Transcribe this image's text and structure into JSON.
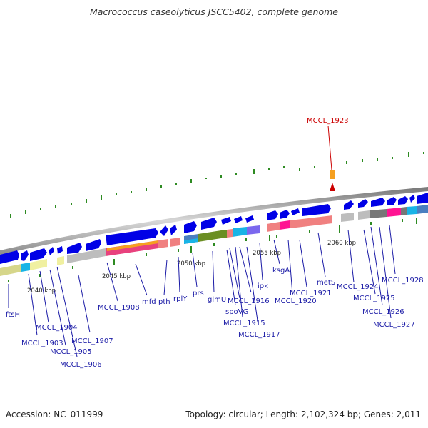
{
  "title": "Macrococcus caseolyticus JSCC5402, complete genome",
  "highlight": {
    "label": "MCCL_1923",
    "color": "#cc0000"
  },
  "kbp_labels": [
    "2040 kbp",
    "2045 kbp",
    "2050 kbp",
    "2055 kbp",
    "2060 kbp"
  ],
  "gene_labels": [
    "ftsH",
    "MCCL_1903",
    "MCCL_1904",
    "MCCL_1905",
    "MCCL_1906",
    "MCCL_1907",
    "MCCL_1908",
    "mfd",
    "pth",
    "rplY",
    "prs",
    "glmU",
    "spoVG",
    "MCCL_1915",
    "MCCL_1916",
    "MCCL_1917",
    "ipk",
    "ksgA",
    "MCCL_1920",
    "MCCL_1921",
    "metS",
    "MCCL_1924",
    "MCCL_1925",
    "MCCL_1926",
    "MCCL_1927",
    "MCCL_1928"
  ],
  "footer": {
    "accession": "Accession: NC_011999",
    "topology": "Topology: circular; Length: 2,102,324 bp; Genes: 2,011"
  },
  "colors": {
    "gene_arrow": "#0000e6",
    "backbone": "#888888",
    "label_text": "#1a1aa6",
    "tick": "#2e8b22"
  }
}
